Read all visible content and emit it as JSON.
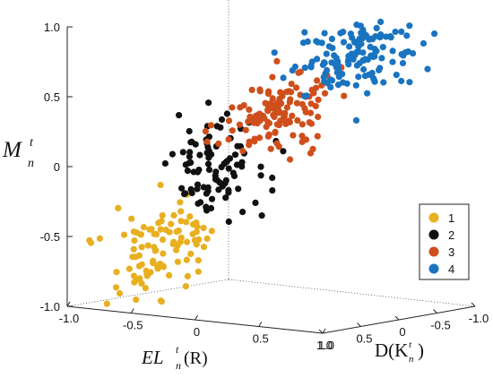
{
  "chart_data": {
    "type": "scatter",
    "projection": "3d",
    "axes": {
      "x": {
        "label_main": "EL",
        "label_sup": "t",
        "label_sub": "n",
        "label_tail": "(R)",
        "ticks": [
          "-1.0",
          "-0.5",
          "0",
          "0.5",
          "1.0"
        ],
        "range": [
          -1.0,
          1.0
        ]
      },
      "y": {
        "label_main": "D(K",
        "label_sup": "t",
        "label_sub": "n",
        "label_tail": ")",
        "ticks": [
          "1.0",
          "0.5",
          "0",
          "-0.5",
          "-1.0"
        ],
        "range": [
          1.0,
          -1.0
        ]
      },
      "z": {
        "label_main": "M",
        "label_sup": "t",
        "label_sub": "n",
        "ticks": [
          "1.0",
          "0.5",
          "0",
          "-0.5",
          "-1.0"
        ],
        "range": [
          -1.0,
          1.0
        ]
      }
    },
    "legend": {
      "position": "right",
      "entries": [
        {
          "label": "1",
          "color": "#e8b020"
        },
        {
          "label": "2",
          "color": "#111111"
        },
        {
          "label": "3",
          "color": "#cf4f1c"
        },
        {
          "label": "4",
          "color": "#1a74c0"
        }
      ]
    },
    "clusters": [
      {
        "name": "1",
        "color": "#e8b020",
        "count": 100,
        "x_center": -0.68,
        "y_center": 0.28,
        "z_center": -0.62,
        "x_spread": 0.16,
        "y_spread": 0.22,
        "z_spread": 0.18
      },
      {
        "name": "2",
        "color": "#111111",
        "count": 95,
        "x_center": -0.3,
        "y_center": 0.22,
        "z_center": -0.02,
        "x_spread": 0.14,
        "y_spread": 0.22,
        "z_spread": 0.18
      },
      {
        "name": "3",
        "color": "#cf4f1c",
        "count": 130,
        "x_center": 0.12,
        "y_center": 0.08,
        "z_center": 0.42,
        "x_spread": 0.16,
        "y_spread": 0.24,
        "z_spread": 0.14
      },
      {
        "name": "4",
        "color": "#1a74c0",
        "count": 140,
        "x_center": 0.52,
        "y_center": -0.25,
        "z_center": 0.82,
        "x_spread": 0.16,
        "y_spread": 0.26,
        "z_spread": 0.14
      }
    ]
  }
}
